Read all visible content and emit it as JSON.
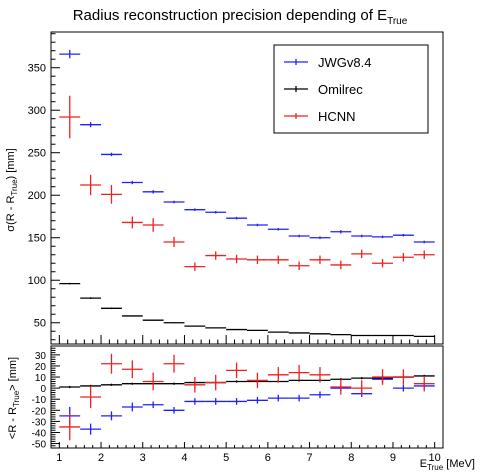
{
  "title": "Radius reconstruction precision depending of E",
  "title_sub": "True",
  "colors": {
    "JWGv8.4": "#2020ff",
    "Omilrec": "#000000",
    "HCNN": "#ee2020"
  },
  "chart_data": [
    {
      "type": "scatter",
      "panel": "top",
      "ylabel_parts": [
        "σ(R - R",
        "True",
        ") [mm]"
      ],
      "xlim": [
        0.8,
        10.2
      ],
      "ylim": [
        25,
        392
      ],
      "yticks": [
        50,
        100,
        150,
        200,
        250,
        300,
        350
      ],
      "legend": {
        "placement": "top-right",
        "entries": [
          "JWGv8.4",
          "Omilrec",
          "HCNN"
        ]
      },
      "series": [
        {
          "name": "JWGv8.4",
          "x": [
            1.25,
            1.75,
            2.25,
            2.75,
            3.25,
            3.75,
            4.25,
            4.75,
            5.25,
            5.75,
            6.25,
            6.75,
            7.25,
            7.75,
            8.25,
            8.75,
            9.25,
            9.75
          ],
          "y": [
            366,
            283,
            248,
            215,
            204,
            192,
            183,
            180,
            173,
            165,
            160,
            152,
            150,
            157,
            152,
            151,
            153,
            145
          ],
          "yerr": [
            5,
            3,
            2,
            2,
            2,
            1.5,
            1.5,
            1.5,
            1.5,
            1.5,
            1.5,
            1.5,
            1.5,
            2,
            1.5,
            1.5,
            1.5,
            1.5
          ]
        },
        {
          "name": "Omilrec",
          "x": [
            1.25,
            1.75,
            2.25,
            2.75,
            3.25,
            3.75,
            4.25,
            4.75,
            5.25,
            5.75,
            6.25,
            6.75,
            7.25,
            7.75,
            8.25,
            8.75,
            9.25,
            9.75
          ],
          "y": [
            96,
            79,
            67,
            58,
            53,
            50,
            46,
            44,
            42,
            41,
            39,
            38,
            37,
            36,
            35,
            35,
            35,
            34
          ],
          "yerr": [
            1,
            1,
            1,
            0.5,
            0.5,
            0.5,
            0.5,
            0.5,
            0.5,
            0.5,
            0.5,
            0.5,
            0.5,
            0.5,
            0.5,
            0.5,
            0.5,
            0.5
          ]
        },
        {
          "name": "HCNN",
          "x": [
            1.25,
            1.75,
            2.25,
            2.75,
            3.25,
            3.75,
            4.25,
            4.75,
            5.25,
            5.75,
            6.25,
            6.75,
            7.25,
            7.75,
            8.25,
            8.75,
            9.25,
            9.75
          ],
          "y": [
            292,
            212,
            201,
            168,
            165,
            145,
            116,
            129,
            125,
            124,
            124,
            117,
            124,
            118,
            131,
            120,
            127,
            130
          ],
          "yerr": [
            25,
            12,
            11,
            7,
            8,
            6,
            5,
            5,
            5,
            5,
            5,
            5,
            5,
            5,
            5,
            5,
            5,
            5
          ]
        }
      ]
    },
    {
      "type": "scatter",
      "panel": "bottom",
      "ylabel_parts": [
        "<R - R",
        "True",
        "> [mm]"
      ],
      "xlabel": "E",
      "xlabel_sub": "True",
      "xlabel_unit": "[MeV]",
      "xlim": [
        0.8,
        10.2
      ],
      "ylim": [
        -54,
        38
      ],
      "yticks": [
        -50,
        -40,
        -30,
        -20,
        -10,
        0,
        10,
        20,
        30
      ],
      "xticks": [
        1,
        2,
        3,
        4,
        5,
        6,
        7,
        8,
        9,
        10
      ],
      "series": [
        {
          "name": "JWGv8.4",
          "x": [
            1.25,
            1.75,
            2.25,
            2.75,
            3.25,
            3.75,
            4.25,
            4.75,
            5.25,
            5.75,
            6.25,
            6.75,
            7.25,
            7.75,
            8.25,
            8.75,
            9.25,
            9.75
          ],
          "y": [
            -25,
            -37,
            -25,
            -17,
            -15,
            -20,
            -12,
            -12,
            -12,
            -11,
            -9,
            -9,
            -6,
            0,
            -5,
            8,
            0,
            2
          ],
          "yerr": [
            8,
            5,
            4,
            4,
            3,
            3,
            3,
            3,
            3,
            3,
            3,
            3,
            3,
            3,
            3,
            3,
            3,
            3
          ]
        },
        {
          "name": "Omilrec",
          "x": [
            1.25,
            1.75,
            2.25,
            2.75,
            3.25,
            3.75,
            4.25,
            4.75,
            5.25,
            5.75,
            6.25,
            6.75,
            7.25,
            7.75,
            8.25,
            8.75,
            9.25,
            9.75
          ],
          "y": [
            1,
            2,
            3,
            4,
            4,
            4,
            5,
            5,
            6,
            6,
            6,
            7,
            7,
            8,
            9,
            9,
            10,
            11
          ],
          "yerr": [
            1,
            1,
            1,
            1,
            1,
            1,
            1,
            1,
            1,
            1,
            1,
            1,
            1,
            1,
            1,
            1,
            1,
            1
          ]
        },
        {
          "name": "HCNN",
          "x": [
            1.25,
            1.75,
            2.25,
            2.75,
            3.25,
            3.75,
            4.25,
            4.75,
            5.25,
            5.75,
            6.25,
            6.75,
            7.25,
            7.75,
            8.25,
            8.75,
            9.25,
            9.75
          ],
          "y": [
            -35,
            -8,
            22,
            17,
            6,
            22,
            3,
            5,
            16,
            7,
            12,
            14,
            12,
            1,
            0,
            10,
            10,
            4
          ],
          "yerr": [
            12,
            10,
            9,
            8,
            8,
            8,
            7,
            7,
            7,
            7,
            7,
            7,
            7,
            7,
            7,
            7,
            7,
            7
          ]
        }
      ]
    }
  ]
}
